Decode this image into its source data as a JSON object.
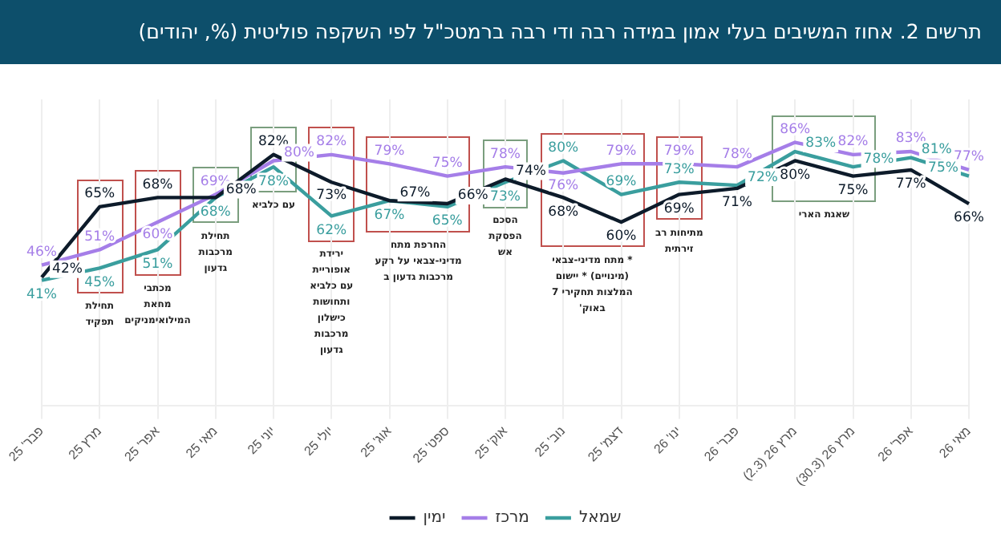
{
  "chart_data": {
    "type": "line",
    "title": "תרשים 2. אחוז המשיבים בעלי אמון במידה רבה ודי רבה ברמטכ\"ל לפי השקפה פוליטית (%, יהודים)",
    "categories": [
      "פבר' 25",
      "מרץ 25",
      "אפר' 25",
      "מאי 25",
      "יוני 25",
      "יולי 25",
      "אוג' 25",
      "ספט' 25",
      "אוק' 25",
      "נוב' 25",
      "דצמ' 25",
      "ינו' 26",
      "פבר' 26",
      "מרץ 26 (2.3)",
      "מרץ 26 (30.3)",
      "אפר' 26",
      "מאי 26"
    ],
    "series": [
      {
        "name": "ימין",
        "color": "#0d1b2a",
        "values": [
          42,
          65,
          68,
          68,
          82,
          73,
          67,
          66,
          74,
          68,
          60,
          69,
          71,
          80,
          75,
          77,
          66
        ],
        "value_labels": [
          "42%",
          "65%",
          "68%",
          "68%",
          "82%",
          "73%",
          "67%",
          "66%",
          "74%",
          "68%",
          "60%",
          "69%",
          "71%",
          "80%",
          "75%",
          "77%",
          "66%"
        ]
      },
      {
        "name": "מרכז",
        "color": "#a57ee8",
        "values": [
          46,
          51,
          60,
          69,
          80,
          82,
          79,
          75,
          78,
          76,
          79,
          79,
          78,
          86,
          82,
          83,
          77
        ],
        "value_labels": [
          "46%",
          "51%",
          "60%",
          "69%",
          "80%",
          "82%",
          "79%",
          "75%",
          "78%",
          "76%",
          "79%",
          "79%",
          "78%",
          "86%",
          "82%",
          "83%",
          "77%"
        ]
      },
      {
        "name": "שמאל",
        "color": "#3a9e9e",
        "values": [
          41,
          45,
          51,
          68,
          78,
          62,
          67,
          65,
          73,
          80,
          69,
          73,
          72,
          83,
          78,
          81,
          75
        ],
        "value_labels": [
          "41%",
          "45%",
          "51%",
          "68%",
          "78%",
          "62%",
          "67%",
          "65%",
          "73%",
          "80%",
          "69%",
          "73%",
          "72%",
          "83%",
          "78%",
          "81%",
          "75%"
        ]
      }
    ],
    "annotations": [
      "תחילת תפקיד",
      "מכתבי מחאת המילואימניקים",
      "תחילת מרכבות גדעון",
      "עם כלביא",
      "ירידת אופוריית עם כלביא ותחושות כישלון מרכבות גדעון",
      "החרפת מתח מדיני-צבאי על רקע מרכבות גדעון ב",
      "הסכם הפסקת אש",
      "* מתח מדיני-צבאי (מינויים) * יישום המלצות תחקירי 7 באוק'",
      "מתיחות רב זירתית",
      "שאגת הארי"
    ],
    "ylim": [
      0,
      100
    ],
    "tick_labels": "x",
    "grid": "x",
    "legend": "bottom",
    "marker": "none",
    "line_style": "solid"
  }
}
